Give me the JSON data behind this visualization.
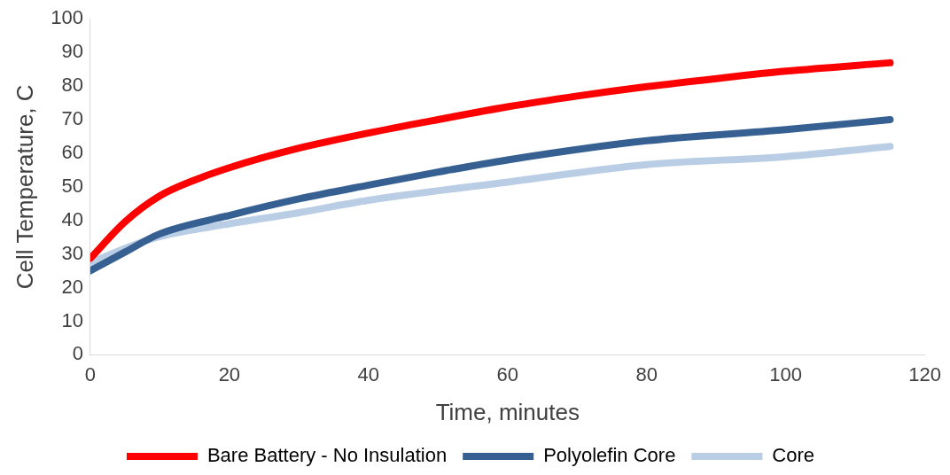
{
  "chart_data": {
    "type": "line",
    "xlabel": "Time, minutes",
    "ylabel": "Cell Temperature, C",
    "xlim": [
      0,
      120
    ],
    "xticks": [
      0,
      20,
      40,
      60,
      80,
      100,
      120
    ],
    "ylim": [
      0,
      100
    ],
    "yticks": [
      0,
      10,
      20,
      30,
      40,
      50,
      60,
      70,
      80,
      90,
      100
    ],
    "grid": false,
    "legend": "bottom",
    "marker": "none",
    "line_style": "solid",
    "series": [
      {
        "name": "Bare Battery - No Insulation",
        "color": "#ff0000",
        "x": [
          0,
          5,
          10,
          15,
          20,
          30,
          40,
          50,
          60,
          70,
          80,
          90,
          100,
          115
        ],
        "values": [
          28.7,
          39.6,
          47.3,
          52,
          55.7,
          61.5,
          66,
          70,
          73.8,
          77,
          79.8,
          82.2,
          84.4,
          86.9
        ]
      },
      {
        "name": "Polyolefin Core",
        "color": "#366092",
        "x": [
          0,
          5,
          10,
          20,
          30,
          40,
          50,
          60,
          80,
          100,
          115
        ],
        "values": [
          25,
          30.6,
          36,
          41.5,
          46.4,
          50.5,
          54.4,
          58,
          63.7,
          67,
          70
        ]
      },
      {
        "name": "Core",
        "color": "#b9cde5",
        "x": [
          0,
          5,
          10,
          20,
          30,
          40,
          60,
          80,
          100,
          115
        ],
        "values": [
          27.3,
          31.7,
          35.2,
          39,
          42.3,
          46,
          51.4,
          56.6,
          59,
          62
        ]
      }
    ]
  }
}
